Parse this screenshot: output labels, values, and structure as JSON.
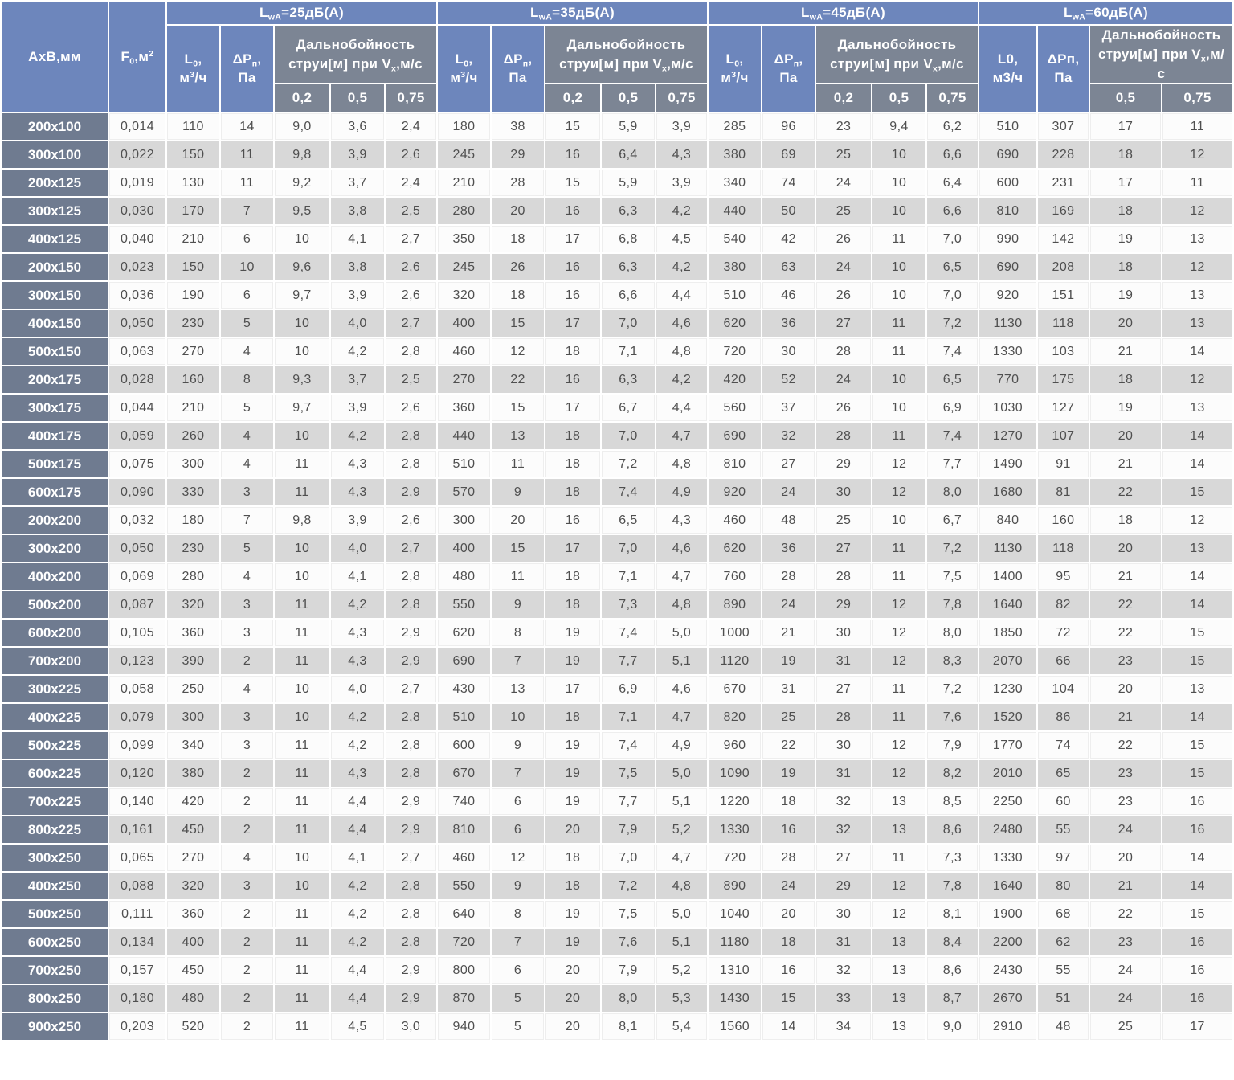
{
  "colors": {
    "header-blue": "#6d86bc",
    "header-gray": "#7c8594",
    "row-label": "#6f7b90",
    "row-alt": "#d8d8d8",
    "row-base": "#fcfcfc",
    "cell-text": "#4f4f4f"
  },
  "table": {
    "axb_header": "АхВ,мм",
    "f0_header": {
      "pre": "F",
      "sub": "0",
      "mid": ",м",
      "sup": "2"
    },
    "groups": [
      {
        "pre": "L",
        "sub": "wA",
        "post": "=25дБ(А)"
      },
      {
        "pre": "L",
        "sub": "wA",
        "post": "=35дБ(А)"
      },
      {
        "pre": "L",
        "sub": "wA",
        "post": "=45дБ(А)"
      },
      {
        "pre": "L",
        "sub": "wA",
        "post": "=60дБ(А)"
      }
    ],
    "flow_header": {
      "line1_pre": "L",
      "line1_sub": "0",
      "line1_post": ",",
      "line2_pre": "м",
      "line2_sup": "3",
      "line2_post": "/ч"
    },
    "pressure_header": {
      "line1_pre": "ΔP",
      "line1_sub": "п",
      "line1_post": ",",
      "line2": "Па"
    },
    "jet_header": {
      "pre": "Дальнобойность струи[м] при V",
      "sub": "х",
      "post": ",м/с"
    },
    "flow_header_plain": {
      "line1": "L0,",
      "line2": "м3/ч"
    },
    "pressure_header_plain": {
      "line1": "ΔPп,",
      "line2": "Па"
    },
    "speed_labels": [
      "0,2",
      "0,5",
      "0,75"
    ],
    "speed_labels_last": [
      "0,5",
      "0,75"
    ]
  },
  "rows": [
    {
      "size": "200x100",
      "values": [
        "0,014",
        "110",
        "14",
        "9,0",
        "3,6",
        "2,4",
        "180",
        "38",
        "15",
        "5,9",
        "3,9",
        "285",
        "96",
        "23",
        "9,4",
        "6,2",
        "510",
        "307",
        "17",
        "11"
      ]
    },
    {
      "size": "300x100",
      "values": [
        "0,022",
        "150",
        "11",
        "9,8",
        "3,9",
        "2,6",
        "245",
        "29",
        "16",
        "6,4",
        "4,3",
        "380",
        "69",
        "25",
        "10",
        "6,6",
        "690",
        "228",
        "18",
        "12"
      ]
    },
    {
      "size": "200x125",
      "values": [
        "0,019",
        "130",
        "11",
        "9,2",
        "3,7",
        "2,4",
        "210",
        "28",
        "15",
        "5,9",
        "3,9",
        "340",
        "74",
        "24",
        "10",
        "6,4",
        "600",
        "231",
        "17",
        "11"
      ]
    },
    {
      "size": "300x125",
      "values": [
        "0,030",
        "170",
        "7",
        "9,5",
        "3,8",
        "2,5",
        "280",
        "20",
        "16",
        "6,3",
        "4,2",
        "440",
        "50",
        "25",
        "10",
        "6,6",
        "810",
        "169",
        "18",
        "12"
      ]
    },
    {
      "size": "400x125",
      "values": [
        "0,040",
        "210",
        "6",
        "10",
        "4,1",
        "2,7",
        "350",
        "18",
        "17",
        "6,8",
        "4,5",
        "540",
        "42",
        "26",
        "11",
        "7,0",
        "990",
        "142",
        "19",
        "13"
      ]
    },
    {
      "size": "200x150",
      "values": [
        "0,023",
        "150",
        "10",
        "9,6",
        "3,8",
        "2,6",
        "245",
        "26",
        "16",
        "6,3",
        "4,2",
        "380",
        "63",
        "24",
        "10",
        "6,5",
        "690",
        "208",
        "18",
        "12"
      ]
    },
    {
      "size": "300x150",
      "values": [
        "0,036",
        "190",
        "6",
        "9,7",
        "3,9",
        "2,6",
        "320",
        "18",
        "16",
        "6,6",
        "4,4",
        "510",
        "46",
        "26",
        "10",
        "7,0",
        "920",
        "151",
        "19",
        "13"
      ]
    },
    {
      "size": "400x150",
      "values": [
        "0,050",
        "230",
        "5",
        "10",
        "4,0",
        "2,7",
        "400",
        "15",
        "17",
        "7,0",
        "4,6",
        "620",
        "36",
        "27",
        "11",
        "7,2",
        "1130",
        "118",
        "20",
        "13"
      ]
    },
    {
      "size": "500x150",
      "values": [
        "0,063",
        "270",
        "4",
        "10",
        "4,2",
        "2,8",
        "460",
        "12",
        "18",
        "7,1",
        "4,8",
        "720",
        "30",
        "28",
        "11",
        "7,4",
        "1330",
        "103",
        "21",
        "14"
      ]
    },
    {
      "size": "200x175",
      "values": [
        "0,028",
        "160",
        "8",
        "9,3",
        "3,7",
        "2,5",
        "270",
        "22",
        "16",
        "6,3",
        "4,2",
        "420",
        "52",
        "24",
        "10",
        "6,5",
        "770",
        "175",
        "18",
        "12"
      ]
    },
    {
      "size": "300x175",
      "values": [
        "0,044",
        "210",
        "5",
        "9,7",
        "3,9",
        "2,6",
        "360",
        "15",
        "17",
        "6,7",
        "4,4",
        "560",
        "37",
        "26",
        "10",
        "6,9",
        "1030",
        "127",
        "19",
        "13"
      ]
    },
    {
      "size": "400x175",
      "values": [
        "0,059",
        "260",
        "4",
        "10",
        "4,2",
        "2,8",
        "440",
        "13",
        "18",
        "7,0",
        "4,7",
        "690",
        "32",
        "28",
        "11",
        "7,4",
        "1270",
        "107",
        "20",
        "14"
      ]
    },
    {
      "size": "500x175",
      "values": [
        "0,075",
        "300",
        "4",
        "11",
        "4,3",
        "2,8",
        "510",
        "11",
        "18",
        "7,2",
        "4,8",
        "810",
        "27",
        "29",
        "12",
        "7,7",
        "1490",
        "91",
        "21",
        "14"
      ]
    },
    {
      "size": "600x175",
      "values": [
        "0,090",
        "330",
        "3",
        "11",
        "4,3",
        "2,9",
        "570",
        "9",
        "18",
        "7,4",
        "4,9",
        "920",
        "24",
        "30",
        "12",
        "8,0",
        "1680",
        "81",
        "22",
        "15"
      ]
    },
    {
      "size": "200x200",
      "values": [
        "0,032",
        "180",
        "7",
        "9,8",
        "3,9",
        "2,6",
        "300",
        "20",
        "16",
        "6,5",
        "4,3",
        "460",
        "48",
        "25",
        "10",
        "6,7",
        "840",
        "160",
        "18",
        "12"
      ]
    },
    {
      "size": "300x200",
      "values": [
        "0,050",
        "230",
        "5",
        "10",
        "4,0",
        "2,7",
        "400",
        "15",
        "17",
        "7,0",
        "4,6",
        "620",
        "36",
        "27",
        "11",
        "7,2",
        "1130",
        "118",
        "20",
        "13"
      ]
    },
    {
      "size": "400x200",
      "values": [
        "0,069",
        "280",
        "4",
        "10",
        "4,1",
        "2,8",
        "480",
        "11",
        "18",
        "7,1",
        "4,7",
        "760",
        "28",
        "28",
        "11",
        "7,5",
        "1400",
        "95",
        "21",
        "14"
      ]
    },
    {
      "size": "500x200",
      "values": [
        "0,087",
        "320",
        "3",
        "11",
        "4,2",
        "2,8",
        "550",
        "9",
        "18",
        "7,3",
        "4,8",
        "890",
        "24",
        "29",
        "12",
        "7,8",
        "1640",
        "82",
        "22",
        "14"
      ]
    },
    {
      "size": "600x200",
      "values": [
        "0,105",
        "360",
        "3",
        "11",
        "4,3",
        "2,9",
        "620",
        "8",
        "19",
        "7,4",
        "5,0",
        "1000",
        "21",
        "30",
        "12",
        "8,0",
        "1850",
        "72",
        "22",
        "15"
      ]
    },
    {
      "size": "700x200",
      "values": [
        "0,123",
        "390",
        "2",
        "11",
        "4,3",
        "2,9",
        "690",
        "7",
        "19",
        "7,7",
        "5,1",
        "1120",
        "19",
        "31",
        "12",
        "8,3",
        "2070",
        "66",
        "23",
        "15"
      ]
    },
    {
      "size": "300x225",
      "values": [
        "0,058",
        "250",
        "4",
        "10",
        "4,0",
        "2,7",
        "430",
        "13",
        "17",
        "6,9",
        "4,6",
        "670",
        "31",
        "27",
        "11",
        "7,2",
        "1230",
        "104",
        "20",
        "13"
      ]
    },
    {
      "size": "400x225",
      "values": [
        "0,079",
        "300",
        "3",
        "10",
        "4,2",
        "2,8",
        "510",
        "10",
        "18",
        "7,1",
        "4,7",
        "820",
        "25",
        "28",
        "11",
        "7,6",
        "1520",
        "86",
        "21",
        "14"
      ]
    },
    {
      "size": "500x225",
      "values": [
        "0,099",
        "340",
        "3",
        "11",
        "4,2",
        "2,8",
        "600",
        "9",
        "19",
        "7,4",
        "4,9",
        "960",
        "22",
        "30",
        "12",
        "7,9",
        "1770",
        "74",
        "22",
        "15"
      ]
    },
    {
      "size": "600x225",
      "values": [
        "0,120",
        "380",
        "2",
        "11",
        "4,3",
        "2,8",
        "670",
        "7",
        "19",
        "7,5",
        "5,0",
        "1090",
        "19",
        "31",
        "12",
        "8,2",
        "2010",
        "65",
        "23",
        "15"
      ]
    },
    {
      "size": "700x225",
      "values": [
        "0,140",
        "420",
        "2",
        "11",
        "4,4",
        "2,9",
        "740",
        "6",
        "19",
        "7,7",
        "5,1",
        "1220",
        "18",
        "32",
        "13",
        "8,5",
        "2250",
        "60",
        "23",
        "16"
      ]
    },
    {
      "size": "800x225",
      "values": [
        "0,161",
        "450",
        "2",
        "11",
        "4,4",
        "2,9",
        "810",
        "6",
        "20",
        "7,9",
        "5,2",
        "1330",
        "16",
        "32",
        "13",
        "8,6",
        "2480",
        "55",
        "24",
        "16"
      ]
    },
    {
      "size": "300x250",
      "values": [
        "0,065",
        "270",
        "4",
        "10",
        "4,1",
        "2,7",
        "460",
        "12",
        "18",
        "7,0",
        "4,7",
        "720",
        "28",
        "27",
        "11",
        "7,3",
        "1330",
        "97",
        "20",
        "14"
      ]
    },
    {
      "size": "400x250",
      "values": [
        "0,088",
        "320",
        "3",
        "10",
        "4,2",
        "2,8",
        "550",
        "9",
        "18",
        "7,2",
        "4,8",
        "890",
        "24",
        "29",
        "12",
        "7,8",
        "1640",
        "80",
        "21",
        "14"
      ]
    },
    {
      "size": "500x250",
      "values": [
        "0,111",
        "360",
        "2",
        "11",
        "4,2",
        "2,8",
        "640",
        "8",
        "19",
        "7,5",
        "5,0",
        "1040",
        "20",
        "30",
        "12",
        "8,1",
        "1900",
        "68",
        "22",
        "15"
      ]
    },
    {
      "size": "600x250",
      "values": [
        "0,134",
        "400",
        "2",
        "11",
        "4,2",
        "2,8",
        "720",
        "7",
        "19",
        "7,6",
        "5,1",
        "1180",
        "18",
        "31",
        "13",
        "8,4",
        "2200",
        "62",
        "23",
        "16"
      ]
    },
    {
      "size": "700x250",
      "values": [
        "0,157",
        "450",
        "2",
        "11",
        "4,4",
        "2,9",
        "800",
        "6",
        "20",
        "7,9",
        "5,2",
        "1310",
        "16",
        "32",
        "13",
        "8,6",
        "2430",
        "55",
        "24",
        "16"
      ]
    },
    {
      "size": "800x250",
      "values": [
        "0,180",
        "480",
        "2",
        "11",
        "4,4",
        "2,9",
        "870",
        "5",
        "20",
        "8,0",
        "5,3",
        "1430",
        "15",
        "33",
        "13",
        "8,7",
        "2670",
        "51",
        "24",
        "16"
      ]
    },
    {
      "size": "900x250",
      "values": [
        "0,203",
        "520",
        "2",
        "11",
        "4,5",
        "3,0",
        "940",
        "5",
        "20",
        "8,1",
        "5,4",
        "1560",
        "14",
        "34",
        "13",
        "9,0",
        "2910",
        "48",
        "25",
        "17"
      ]
    }
  ]
}
